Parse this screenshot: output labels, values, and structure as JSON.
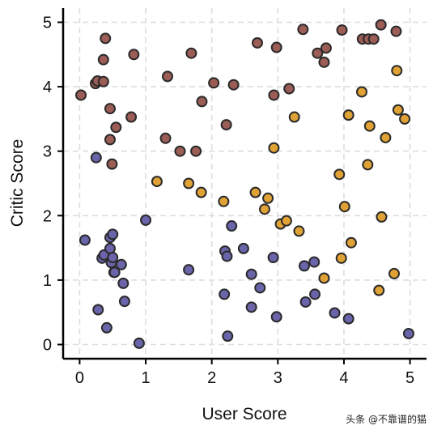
{
  "chart_data": {
    "type": "scatter",
    "xlabel": "User Score",
    "ylabel": "Critic Score",
    "xlim": [
      -0.25,
      5.25
    ],
    "ylim": [
      -0.22,
      5.22
    ],
    "x_ticks": [
      "0",
      "1",
      "2",
      "3",
      "4",
      "5"
    ],
    "y_ticks": [
      "0",
      "1",
      "2",
      "3",
      "4",
      "5"
    ],
    "grid": true,
    "legend": "none",
    "series": [
      {
        "color": "#9c5d57",
        "points": [
          [
            0.02,
            3.87
          ],
          [
            0.24,
            4.05
          ],
          [
            0.27,
            4.09
          ],
          [
            0.36,
            4.08
          ],
          [
            0.36,
            4.42
          ],
          [
            0.39,
            4.75
          ],
          [
            0.46,
            3.66
          ],
          [
            0.46,
            3.18
          ],
          [
            0.49,
            2.8
          ],
          [
            0.55,
            3.37
          ],
          [
            0.78,
            3.53
          ],
          [
            0.82,
            4.5
          ],
          [
            1.3,
            3.2
          ],
          [
            1.33,
            4.16
          ],
          [
            1.52,
            3.0
          ],
          [
            1.69,
            4.52
          ],
          [
            1.76,
            3.0
          ],
          [
            1.85,
            3.77
          ],
          [
            2.03,
            4.06
          ],
          [
            2.22,
            3.41
          ],
          [
            2.33,
            4.03
          ],
          [
            2.69,
            4.68
          ],
          [
            2.94,
            3.87
          ],
          [
            2.98,
            4.61
          ],
          [
            3.17,
            3.97
          ],
          [
            3.38,
            4.89
          ],
          [
            3.6,
            4.52
          ],
          [
            3.7,
            4.38
          ],
          [
            3.73,
            4.6
          ],
          [
            3.97,
            4.88
          ],
          [
            4.28,
            4.74
          ],
          [
            4.37,
            4.74
          ],
          [
            4.45,
            4.74
          ],
          [
            4.56,
            4.96
          ],
          [
            4.79,
            4.86
          ]
        ]
      },
      {
        "color": "#e0a235",
        "points": [
          [
            1.17,
            2.53
          ],
          [
            1.65,
            2.5
          ],
          [
            1.84,
            2.36
          ],
          [
            2.18,
            2.22
          ],
          [
            2.66,
            2.36
          ],
          [
            2.8,
            2.1
          ],
          [
            2.85,
            2.27
          ],
          [
            2.94,
            3.05
          ],
          [
            3.04,
            1.87
          ],
          [
            3.13,
            1.92
          ],
          [
            3.25,
            3.53
          ],
          [
            3.32,
            1.76
          ],
          [
            3.7,
            1.03
          ],
          [
            3.93,
            2.64
          ],
          [
            3.96,
            1.34
          ],
          [
            4.01,
            2.14
          ],
          [
            4.07,
            3.56
          ],
          [
            4.11,
            1.58
          ],
          [
            4.27,
            3.92
          ],
          [
            4.36,
            2.79
          ],
          [
            4.39,
            3.39
          ],
          [
            4.53,
            0.84
          ],
          [
            4.57,
            1.98
          ],
          [
            4.63,
            3.21
          ],
          [
            4.76,
            1.1
          ],
          [
            4.8,
            4.25
          ],
          [
            4.82,
            3.64
          ],
          [
            4.92,
            3.5
          ]
        ]
      },
      {
        "color": "#6a64aa",
        "points": [
          [
            0.08,
            1.62
          ],
          [
            0.25,
            2.9
          ],
          [
            0.28,
            0.54
          ],
          [
            0.34,
            1.34
          ],
          [
            0.37,
            1.39
          ],
          [
            0.41,
            0.26
          ],
          [
            0.46,
            1.49
          ],
          [
            0.46,
            1.66
          ],
          [
            0.48,
            1.27
          ],
          [
            0.5,
            1.71
          ],
          [
            0.5,
            1.35
          ],
          [
            0.52,
            1.12
          ],
          [
            0.53,
            1.12
          ],
          [
            0.63,
            1.24
          ],
          [
            0.66,
            0.95
          ],
          [
            0.68,
            0.67
          ],
          [
            0.9,
            0.02
          ],
          [
            1.0,
            1.93
          ],
          [
            1.65,
            1.16
          ],
          [
            2.2,
            1.45
          ],
          [
            2.19,
            0.78
          ],
          [
            2.23,
            1.37
          ],
          [
            2.24,
            0.13
          ],
          [
            2.3,
            1.84
          ],
          [
            2.48,
            1.49
          ],
          [
            2.6,
            1.09
          ],
          [
            2.6,
            0.58
          ],
          [
            2.73,
            0.88
          ],
          [
            2.93,
            1.35
          ],
          [
            2.98,
            0.43
          ],
          [
            3.4,
            1.22
          ],
          [
            3.42,
            0.66
          ],
          [
            3.55,
            1.28
          ],
          [
            3.56,
            0.78
          ],
          [
            3.86,
            0.49
          ],
          [
            4.07,
            0.4
          ],
          [
            4.98,
            0.17
          ]
        ]
      }
    ]
  },
  "watermark": {
    "text": "头条 @不靠谱的猫"
  }
}
